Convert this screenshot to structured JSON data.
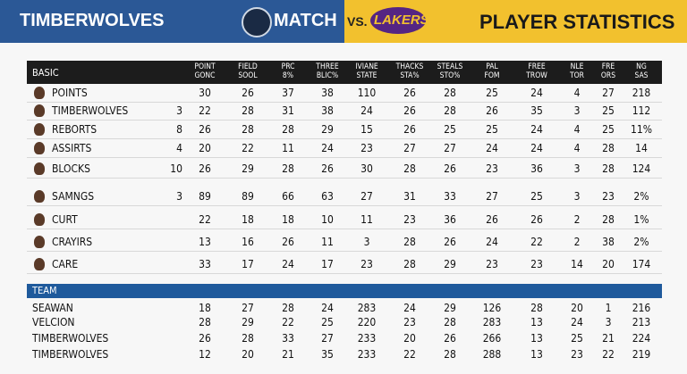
{
  "header": {
    "left_title": "TIMBERWOLVES",
    "match": "MATCH",
    "vs": "VS.",
    "lakers": "LAKERS",
    "right_title": "PLAYER STATISTICS"
  },
  "table": {
    "section": "BASIC",
    "columns": [
      "POINT GONC",
      "FIELD SOOL",
      "PRC 8%",
      "THREE BLIC%",
      "IVIANE STATE",
      "THACKS STA%",
      "STEALS STO%",
      "PAL FOM",
      "FREE TROW",
      "NLE TOR",
      "FRE ORS",
      "NG SAS"
    ],
    "rows": [
      {
        "name": "POINTS",
        "cells": [
          30,
          26,
          37,
          38,
          110,
          26,
          28,
          25,
          24,
          4,
          27,
          218
        ]
      },
      {
        "name": "TIMBERWOLVES",
        "num": 3,
        "cells": [
          22,
          28,
          31,
          38,
          24,
          26,
          28,
          26,
          35,
          3,
          25,
          112
        ]
      },
      {
        "name": "REBORTS",
        "num": 8,
        "cells": [
          26,
          28,
          28,
          29,
          15,
          26,
          25,
          25,
          24,
          4,
          25,
          "11%"
        ]
      },
      {
        "name": "ASSIRTS",
        "num": 4,
        "cells": [
          20,
          22,
          11,
          24,
          23,
          27,
          27,
          24,
          24,
          4,
          28,
          14
        ]
      },
      {
        "name": "BLOCKS",
        "num": 10,
        "cells": [
          26,
          29,
          28,
          26,
          30,
          28,
          26,
          23,
          36,
          3,
          28,
          124
        ]
      },
      {
        "name": "SAMNGS",
        "num": 3,
        "cells": [
          89,
          89,
          66,
          63,
          27,
          31,
          33,
          27,
          25,
          3,
          23,
          "2%"
        ]
      },
      {
        "name": "CURT",
        "cells": [
          22,
          18,
          18,
          10,
          11,
          23,
          36,
          26,
          26,
          2,
          28,
          "1%"
        ]
      },
      {
        "name": "CRAYIRS",
        "cells": [
          13,
          16,
          26,
          11,
          3,
          28,
          26,
          24,
          22,
          2,
          38,
          "2%"
        ]
      },
      {
        "name": "CARE",
        "cells": [
          33,
          17,
          24,
          17,
          23,
          28,
          29,
          23,
          23,
          14,
          20,
          174
        ]
      }
    ]
  },
  "team": {
    "section": "TEAM",
    "rows": [
      {
        "name": "SEAWAN",
        "cells": [
          18,
          27,
          28,
          24,
          283,
          24,
          29,
          126,
          28,
          20,
          1,
          216
        ]
      },
      {
        "name": "VELCION",
        "cells": [
          28,
          29,
          22,
          25,
          220,
          23,
          28,
          283,
          13,
          24,
          3,
          213
        ]
      },
      {
        "name": "TIMBERWOLVES",
        "cells": [
          26,
          28,
          33,
          27,
          233,
          20,
          26,
          266,
          13,
          25,
          21,
          224
        ]
      },
      {
        "name": "TIMBERWOLVES",
        "cells": [
          12,
          20,
          21,
          35,
          233,
          22,
          28,
          288,
          13,
          23,
          22,
          219
        ]
      }
    ]
  }
}
